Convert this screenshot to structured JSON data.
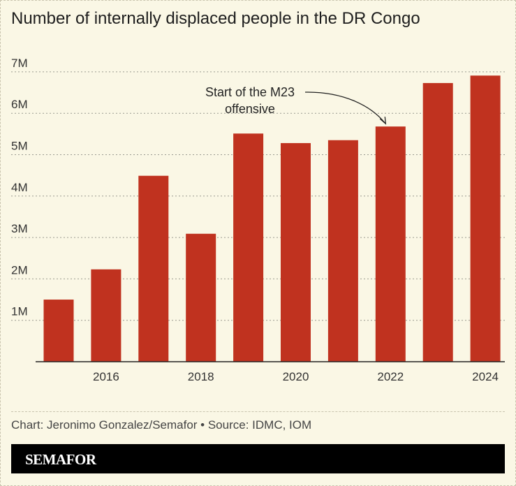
{
  "title": "Number of internally displaced people in the DR Congo",
  "credit": "Chart: Jeronimo Gonzalez/Semafor • Source: IDMC, IOM",
  "brand": "SEMAFOR",
  "colors": {
    "bar": "#c0321f",
    "background": "#faf7e5"
  },
  "chart_data": {
    "type": "bar",
    "title": "Number of internally displaced people in the DR Congo",
    "categories": [
      "2015",
      "2016",
      "2017",
      "2018",
      "2019",
      "2020",
      "2021",
      "2022",
      "2023",
      "2024"
    ],
    "values": [
      1.5,
      2.23,
      4.49,
      3.09,
      5.51,
      5.28,
      5.35,
      5.68,
      6.73,
      6.91
    ],
    "unit": "millions",
    "ylim": [
      0,
      7.2
    ],
    "yticks": [
      {
        "v": 1,
        "label": "1M"
      },
      {
        "v": 2,
        "label": "2M"
      },
      {
        "v": 3,
        "label": "3M"
      },
      {
        "v": 4,
        "label": "4M"
      },
      {
        "v": 5,
        "label": "5M"
      },
      {
        "v": 6,
        "label": "6M"
      },
      {
        "v": 7,
        "label": "7M"
      }
    ],
    "xticks": [
      "2016",
      "2018",
      "2020",
      "2022",
      "2024"
    ],
    "grid": true,
    "annotation": {
      "lines": [
        "Start of the M23",
        "offensive"
      ],
      "target": "2022"
    }
  }
}
